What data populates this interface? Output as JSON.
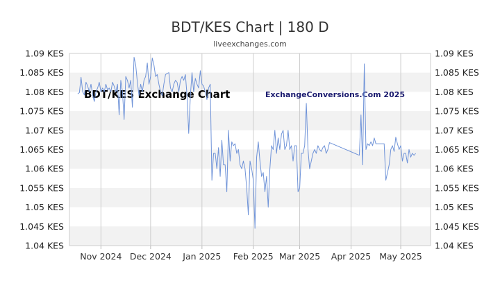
{
  "header": {
    "title": "BDT/KES Chart | 180 D",
    "subtitle": "liveexchanges.com"
  },
  "watermarks": {
    "left": "BDT/KES Exchange Chart",
    "right": "ExchangeConversions.Com 2025"
  },
  "colors": {
    "line": "#6f93d8",
    "band": "#f2f2f2",
    "grid": "#cccccc"
  },
  "chart_data": {
    "type": "line",
    "title": "BDT/KES Chart | 180 D",
    "ylim": [
      1.04,
      1.09
    ],
    "y_ticks": [
      1.04,
      1.045,
      1.05,
      1.055,
      1.06,
      1.065,
      1.07,
      1.075,
      1.08,
      1.085,
      1.09
    ],
    "y_tick_labels": [
      "1.04 KES",
      "1.045 KES",
      "1.05 KES",
      "1.055 KES",
      "1.06 KES",
      "1.065 KES",
      "1.07 KES",
      "1.075 KES",
      "1.08 KES",
      "1.085 KES",
      "1.09 KES"
    ],
    "x_range": [
      "2024-10-13",
      "2025-05-19"
    ],
    "x_ticks": [
      {
        "date": "2024-11-01",
        "label": "Nov 2024"
      },
      {
        "date": "2024-12-01",
        "label": "Dec 2024"
      },
      {
        "date": "2025-01-01",
        "label": "Jan 2025"
      },
      {
        "date": "2025-02-01",
        "label": "Feb 2025"
      },
      {
        "date": "2025-03-01",
        "label": "Mar 2025"
      },
      {
        "date": "2025-04-01",
        "label": "Apr 2025"
      },
      {
        "date": "2025-05-01",
        "label": "May 2025"
      }
    ],
    "grid": "vertical lines at month ticks, alternating horizontal bands",
    "axis_labels_both_sides": true,
    "series": [
      {
        "points": [
          [
            "2024-10-18",
            1.0795
          ],
          [
            "2024-10-19",
            1.0798
          ],
          [
            "2024-10-20",
            1.0838
          ],
          [
            "2024-10-21",
            1.08
          ],
          [
            "2024-10-22",
            1.0792
          ],
          [
            "2024-10-23",
            1.0825
          ],
          [
            "2024-10-24",
            1.0815
          ],
          [
            "2024-10-25",
            1.08
          ],
          [
            "2024-10-26",
            1.082
          ],
          [
            "2024-10-27",
            1.0792
          ],
          [
            "2024-10-28",
            1.0775
          ],
          [
            "2024-10-29",
            1.08
          ],
          [
            "2024-10-30",
            1.081
          ],
          [
            "2024-10-31",
            1.0825
          ],
          [
            "2024-11-01",
            1.08
          ],
          [
            "2024-11-02",
            1.081
          ],
          [
            "2024-11-03",
            1.08
          ],
          [
            "2024-11-04",
            1.082
          ],
          [
            "2024-11-05",
            1.0805
          ],
          [
            "2024-11-06",
            1.081
          ],
          [
            "2024-11-07",
            1.08
          ],
          [
            "2024-11-08",
            1.0825
          ],
          [
            "2024-11-09",
            1.0815
          ],
          [
            "2024-11-10",
            1.08
          ],
          [
            "2024-11-11",
            1.082
          ],
          [
            "2024-11-12",
            1.074
          ],
          [
            "2024-11-13",
            1.083
          ],
          [
            "2024-11-14",
            1.08
          ],
          [
            "2024-11-15",
            1.0728
          ],
          [
            "2024-11-16",
            1.084
          ],
          [
            "2024-11-17",
            1.083
          ],
          [
            "2024-11-18",
            1.081
          ],
          [
            "2024-11-19",
            1.083
          ],
          [
            "2024-11-20",
            1.076
          ],
          [
            "2024-11-21",
            1.089
          ],
          [
            "2024-11-22",
            1.087
          ],
          [
            "2024-11-23",
            1.0825
          ],
          [
            "2024-11-24",
            1.079
          ],
          [
            "2024-11-25",
            1.082
          ],
          [
            "2024-11-26",
            1.08
          ],
          [
            "2024-11-27",
            1.083
          ],
          [
            "2024-11-28",
            1.084
          ],
          [
            "2024-11-29",
            1.0875
          ],
          [
            "2024-11-30",
            1.082
          ],
          [
            "2024-12-01",
            1.084
          ],
          [
            "2024-12-02",
            1.0888
          ],
          [
            "2024-12-03",
            1.087
          ],
          [
            "2024-12-04",
            1.084
          ],
          [
            "2024-12-05",
            1.0845
          ],
          [
            "2024-12-06",
            1.082
          ],
          [
            "2024-12-07",
            1.08
          ],
          [
            "2024-12-08",
            1.079
          ],
          [
            "2024-12-09",
            1.082
          ],
          [
            "2024-12-10",
            1.0845
          ],
          [
            "2024-12-11",
            1.0848
          ],
          [
            "2024-12-12",
            1.085
          ],
          [
            "2024-12-13",
            1.081
          ],
          [
            "2024-12-14",
            1.08
          ],
          [
            "2024-12-15",
            1.082
          ],
          [
            "2024-12-16",
            1.083
          ],
          [
            "2024-12-17",
            1.0825
          ],
          [
            "2024-12-18",
            1.08
          ],
          [
            "2024-12-19",
            1.083
          ],
          [
            "2024-12-20",
            1.084
          ],
          [
            "2024-12-21",
            1.083
          ],
          [
            "2024-12-22",
            1.0845
          ],
          [
            "2024-12-23",
            1.079
          ],
          [
            "2024-12-24",
            1.0692
          ],
          [
            "2024-12-25",
            1.079
          ],
          [
            "2024-12-26",
            1.085
          ],
          [
            "2024-12-27",
            1.08
          ],
          [
            "2024-12-28",
            1.0835
          ],
          [
            "2024-12-29",
            1.082
          ],
          [
            "2024-12-30",
            1.081
          ],
          [
            "2024-12-31",
            1.0855
          ],
          [
            "2025-01-01",
            1.082
          ],
          [
            "2025-01-02",
            1.0815
          ],
          [
            "2025-01-03",
            1.08
          ],
          [
            "2025-01-04",
            1.078
          ],
          [
            "2025-01-05",
            1.081
          ],
          [
            "2025-01-06",
            1.082
          ],
          [
            "2025-01-07",
            1.057
          ],
          [
            "2025-01-08",
            1.064
          ],
          [
            "2025-01-09",
            1.064
          ],
          [
            "2025-01-10",
            1.06
          ],
          [
            "2025-01-11",
            1.0655
          ],
          [
            "2025-01-12",
            1.058
          ],
          [
            "2025-01-13",
            1.0674
          ],
          [
            "2025-01-14",
            1.061
          ],
          [
            "2025-01-15",
            1.061
          ],
          [
            "2025-01-16",
            1.054
          ],
          [
            "2025-01-17",
            1.07
          ],
          [
            "2025-01-18",
            1.062
          ],
          [
            "2025-01-19",
            1.067
          ],
          [
            "2025-01-20",
            1.066
          ],
          [
            "2025-01-21",
            1.0665
          ],
          [
            "2025-01-22",
            1.064
          ],
          [
            "2025-01-23",
            1.065
          ],
          [
            "2025-01-24",
            1.061
          ],
          [
            "2025-01-25",
            1.06
          ],
          [
            "2025-01-26",
            1.062
          ],
          [
            "2025-01-27",
            1.06
          ],
          [
            "2025-01-28",
            1.055
          ],
          [
            "2025-01-29",
            1.048
          ],
          [
            "2025-01-30",
            1.062
          ],
          [
            "2025-01-31",
            1.06
          ],
          [
            "2025-02-01",
            1.057
          ],
          [
            "2025-02-02",
            1.0445
          ],
          [
            "2025-02-03",
            1.063
          ],
          [
            "2025-02-04",
            1.067
          ],
          [
            "2025-02-05",
            1.062
          ],
          [
            "2025-02-06",
            1.058
          ],
          [
            "2025-02-07",
            1.059
          ],
          [
            "2025-02-08",
            1.054
          ],
          [
            "2025-02-09",
            1.058
          ],
          [
            "2025-02-10",
            1.05
          ],
          [
            "2025-02-11",
            1.06
          ],
          [
            "2025-02-12",
            1.066
          ],
          [
            "2025-02-13",
            1.065
          ],
          [
            "2025-02-14",
            1.07
          ],
          [
            "2025-02-15",
            1.064
          ],
          [
            "2025-02-16",
            1.068
          ],
          [
            "2025-02-17",
            1.065
          ],
          [
            "2025-02-18",
            1.069
          ],
          [
            "2025-02-19",
            1.07
          ],
          [
            "2025-02-20",
            1.065
          ],
          [
            "2025-02-21",
            1.066
          ],
          [
            "2025-02-22",
            1.07
          ],
          [
            "2025-02-23",
            1.065
          ],
          [
            "2025-02-24",
            1.066
          ],
          [
            "2025-02-25",
            1.062
          ],
          [
            "2025-02-26",
            1.066
          ],
          [
            "2025-02-27",
            1.066
          ],
          [
            "2025-02-28",
            1.054
          ],
          [
            "2025-03-01",
            1.055
          ],
          [
            "2025-03-02",
            1.064
          ],
          [
            "2025-03-03",
            1.064
          ],
          [
            "2025-03-04",
            1.066
          ],
          [
            "2025-03-05",
            1.077
          ],
          [
            "2025-03-06",
            1.065
          ],
          [
            "2025-03-07",
            1.06
          ],
          [
            "2025-03-08",
            1.062
          ],
          [
            "2025-03-09",
            1.064
          ],
          [
            "2025-03-10",
            1.065
          ],
          [
            "2025-03-11",
            1.064
          ],
          [
            "2025-03-12",
            1.066
          ],
          [
            "2025-03-13",
            1.065
          ],
          [
            "2025-03-14",
            1.0645
          ],
          [
            "2025-03-15",
            1.0655
          ],
          [
            "2025-03-16",
            1.066
          ],
          [
            "2025-03-17",
            1.064
          ],
          [
            "2025-03-18",
            1.065
          ],
          [
            "2025-03-19",
            1.0668
          ],
          [
            "2025-04-06",
            1.0635
          ],
          [
            "2025-04-07",
            1.074
          ],
          [
            "2025-04-08",
            1.061
          ],
          [
            "2025-04-09",
            1.0873
          ],
          [
            "2025-04-10",
            1.065
          ],
          [
            "2025-04-11",
            1.0665
          ],
          [
            "2025-04-12",
            1.066
          ],
          [
            "2025-04-13",
            1.067
          ],
          [
            "2025-04-14",
            1.066
          ],
          [
            "2025-04-15",
            1.068
          ],
          [
            "2025-04-16",
            1.0665
          ],
          [
            "2025-04-21",
            1.0665
          ],
          [
            "2025-04-22",
            1.057
          ],
          [
            "2025-04-23",
            1.059
          ],
          [
            "2025-04-24",
            1.061
          ],
          [
            "2025-04-25",
            1.065
          ],
          [
            "2025-04-26",
            1.066
          ],
          [
            "2025-04-27",
            1.0645
          ],
          [
            "2025-04-28",
            1.0682
          ],
          [
            "2025-04-29",
            1.0665
          ],
          [
            "2025-04-30",
            1.065
          ],
          [
            "2025-05-01",
            1.066
          ],
          [
            "2025-05-02",
            1.062
          ],
          [
            "2025-05-03",
            1.064
          ],
          [
            "2025-05-04",
            1.064
          ],
          [
            "2025-05-05",
            1.0615
          ],
          [
            "2025-05-06",
            1.065
          ],
          [
            "2025-05-07",
            1.063
          ],
          [
            "2025-05-08",
            1.064
          ],
          [
            "2025-05-09",
            1.0635
          ],
          [
            "2025-05-10",
            1.064
          ]
        ]
      }
    ]
  }
}
